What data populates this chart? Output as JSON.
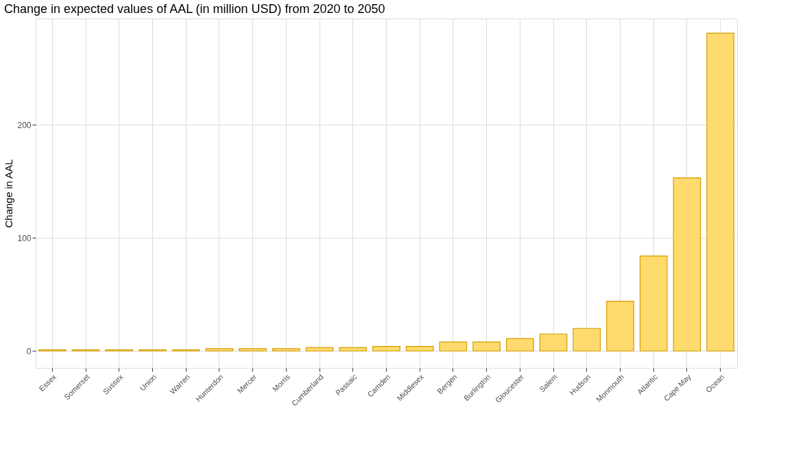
{
  "chart_data": {
    "type": "bar",
    "title": "Change in expected values of AAL (in million USD) from 2020 to 2050",
    "ylabel": "Change in AAL",
    "categories": [
      "Essex",
      "Somerset",
      "Sussex",
      "Union",
      "Warren",
      "Hunterdon",
      "Mercer",
      "Morris",
      "Cumberland",
      "Passaic",
      "Camden",
      "Middlesex",
      "Bergen",
      "Burlington",
      "Gloucester",
      "Salem",
      "Hudson",
      "Monmouth",
      "Atlantic",
      "Cape May",
      "Ocean"
    ],
    "values": [
      1,
      1,
      1,
      1,
      1,
      2,
      2,
      2,
      3,
      3,
      4,
      4,
      8,
      8,
      11,
      15,
      20,
      44,
      84,
      153,
      281
    ],
    "color": "#ffdb6d",
    "ylim": [
      -15,
      294
    ],
    "yticks": [
      0,
      100,
      200
    ],
    "grid": true
  }
}
